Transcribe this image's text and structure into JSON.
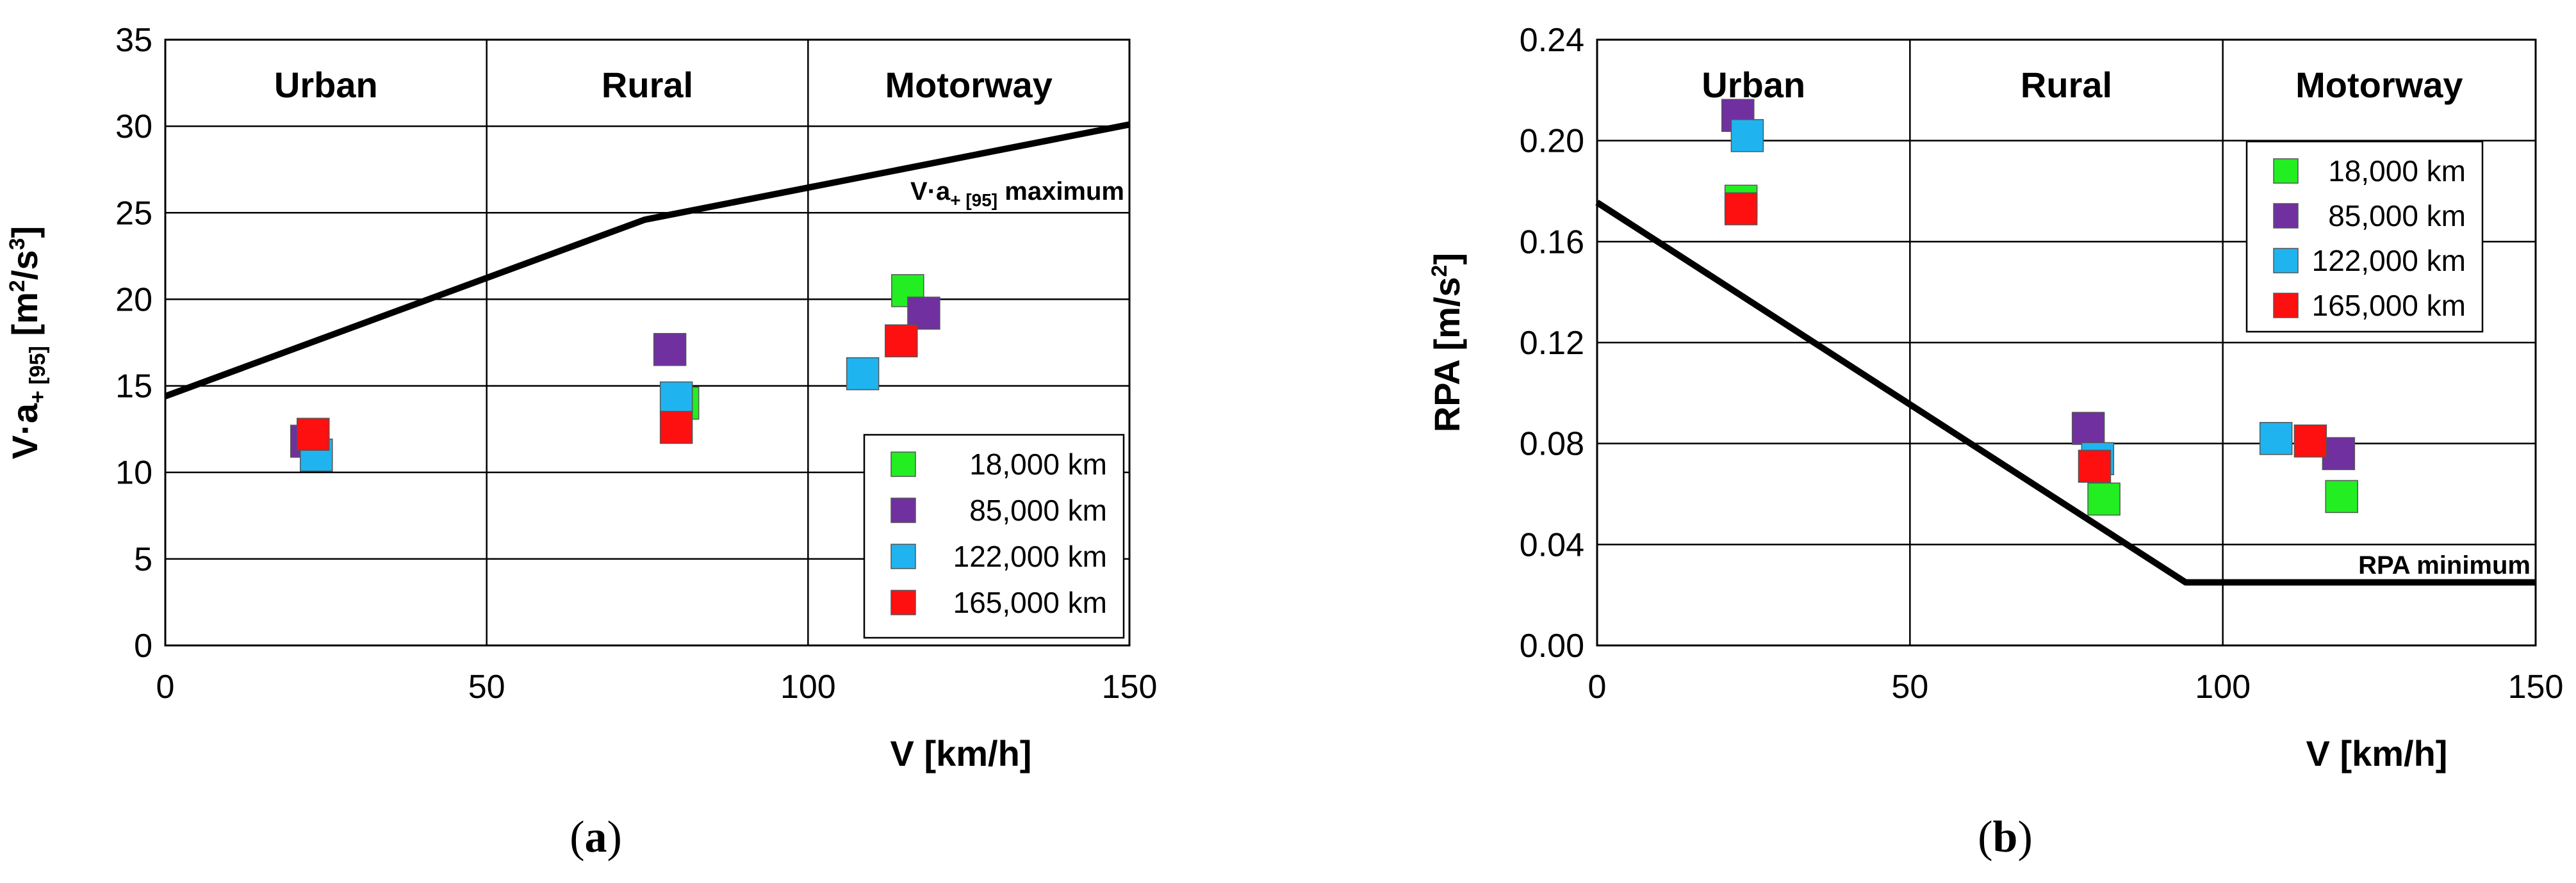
{
  "colors": {
    "18,000 km": "#22ee22",
    "85,000 km": "#7030a0",
    "122,000 km": "#1fb4f0",
    "165,000 km": "#ff1010",
    "line": "#000000",
    "grid": "#000000"
  },
  "chart_data": [
    {
      "type": "scatter",
      "panel": "a",
      "caption_open": "(",
      "caption_letter": "a",
      "caption_close": ")",
      "xlabel": "V [km/h]",
      "ylabel": {
        "prefix": "V·a",
        "sub": "+ [95]",
        "unit_open": " [m",
        "sup1": "2",
        "unit_mid": "/s",
        "sup2": "3",
        "unit_close": "]"
      },
      "xlim": [
        0,
        150
      ],
      "ylim": [
        0,
        35
      ],
      "xticks": [
        0,
        50,
        100,
        150
      ],
      "yticks": [
        0,
        5,
        10,
        15,
        20,
        25,
        30,
        35
      ],
      "ytick_labels": [
        "0",
        "5",
        "10",
        "15",
        "20",
        "25",
        "30",
        "35"
      ],
      "zones": [
        {
          "label": "Urban",
          "from": 0,
          "to": 50
        },
        {
          "label": "Rural",
          "from": 50,
          "to": 100
        },
        {
          "label": "Motorway",
          "from": 100,
          "to": 150
        }
      ],
      "grid": true,
      "legend_position": "bottom-right",
      "series": [
        {
          "name": "18,000 km",
          "points": [
            [
              23,
              12.0
            ],
            [
              80.5,
              14.0
            ],
            [
              115.5,
              20.5
            ]
          ]
        },
        {
          "name": "85,000 km",
          "points": [
            [
              22,
              11.8
            ],
            [
              78.5,
              17.1
            ],
            [
              118,
              19.2
            ]
          ]
        },
        {
          "name": "122,000 km",
          "points": [
            [
              23.5,
              11.0
            ],
            [
              79.5,
              14.3
            ],
            [
              108.5,
              15.7
            ]
          ]
        },
        {
          "name": "165,000 km",
          "points": [
            [
              23,
              12.2
            ],
            [
              79.5,
              12.6
            ],
            [
              114.5,
              17.6
            ]
          ]
        }
      ],
      "limit_line": {
        "label_prefix": "V·a",
        "label_sub": "+ [95]",
        "label_suffix": " maximum",
        "points": [
          [
            0,
            14.4
          ],
          [
            74.6,
            24.6
          ],
          [
            150,
            30.1
          ]
        ]
      }
    },
    {
      "type": "scatter",
      "panel": "b",
      "caption_open": "(",
      "caption_letter": "b",
      "caption_close": ")",
      "xlabel": "V [km/h]",
      "ylabel": {
        "prefix": "RPA [m/s",
        "sup": "2",
        "suffix": "]"
      },
      "xlim": [
        0,
        150
      ],
      "ylim": [
        0,
        0.24
      ],
      "xticks": [
        0,
        50,
        100,
        150
      ],
      "yticks": [
        0,
        0.04,
        0.08,
        0.12,
        0.16,
        0.2,
        0.24
      ],
      "ytick_labels": [
        "0.00",
        "0.04",
        "0.08",
        "0.12",
        "0.16",
        "0.20",
        "0.24"
      ],
      "zones": [
        {
          "label": "Urban",
          "from": 0,
          "to": 50
        },
        {
          "label": "Rural",
          "from": 50,
          "to": 100
        },
        {
          "label": "Motorway",
          "from": 100,
          "to": 150
        }
      ],
      "grid": true,
      "legend_position": "top-right",
      "series": [
        {
          "name": "18,000 km",
          "points": [
            [
              23,
              0.176
            ],
            [
              81,
              0.058
            ],
            [
              119,
              0.059
            ]
          ]
        },
        {
          "name": "85,000 km",
          "points": [
            [
              22.5,
              0.21
            ],
            [
              78.5,
              0.086
            ],
            [
              118.5,
              0.076
            ]
          ]
        },
        {
          "name": "122,000 km",
          "points": [
            [
              24,
              0.202
            ],
            [
              80,
              0.074
            ],
            [
              108.5,
              0.082
            ]
          ]
        },
        {
          "name": "165,000 km",
          "points": [
            [
              23,
              0.173
            ],
            [
              79.5,
              0.071
            ],
            [
              114,
              0.081
            ]
          ]
        }
      ],
      "limit_line": {
        "label": "RPA minimum",
        "points": [
          [
            0,
            0.1755
          ],
          [
            94.05,
            0.025
          ],
          [
            150,
            0.025
          ]
        ]
      }
    }
  ]
}
